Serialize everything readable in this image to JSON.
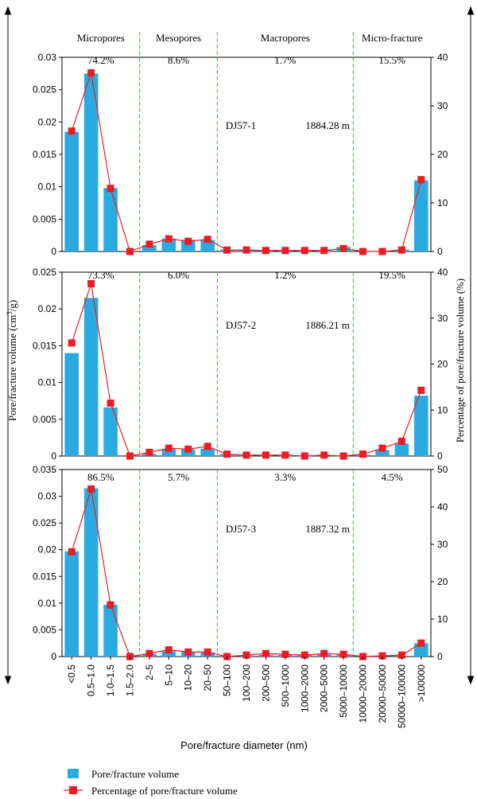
{
  "chart_data": {
    "type": "bar",
    "categories": [
      "<0.5",
      "0.5–1.0",
      "1.0–1.5",
      "1.5–2.0",
      "2–5",
      "5–10",
      "10–20",
      "20–50",
      "50–100",
      "100–200",
      "200–500",
      "500–1000",
      "1000–2000",
      "2000–5000",
      "5000–10000",
      "10000–20000",
      "20000–50000",
      "50000–100000",
      ">100000"
    ],
    "xlabel": "Pore/fracture diameter (nm)",
    "ylabel_left": "Pore/fracture volume (cm³/g)",
    "ylabel_right": "Percentage of pore/fracture volume (%)",
    "legend": [
      {
        "name": "Pore/fracture volume",
        "color": "#29abe2"
      },
      {
        "name": "Percentage of pore/fracture volume",
        "color": "#ed1c24"
      }
    ],
    "bar_color": "#29abe2",
    "line_color": "#ed1c24",
    "divider_color": "#3cb54a",
    "regions": [
      "Micropores",
      "Mesopores",
      "Macropores",
      "Micro-fracture"
    ],
    "panels": [
      {
        "sample": "DJ57-1",
        "depth": "1884.28 m",
        "region_percentages": [
          "74.2%",
          "8.6%",
          "1.7%",
          "15.5%"
        ],
        "ylim_left": [
          0,
          0.03
        ],
        "yticks_left": [
          "0",
          "0.005",
          "0.01",
          "0.015",
          "0.02",
          "0.025",
          "0.03"
        ],
        "ylim_right": [
          0,
          40
        ],
        "yticks_right": [
          "0",
          "10",
          "20",
          "30",
          "40"
        ],
        "series": [
          {
            "name": "Pore/fracture volume",
            "values": [
              0.0185,
              0.0275,
              0.0098,
              0,
              0.001,
              0.002,
              0.0018,
              0.0018,
              0.0003,
              0.0003,
              0.0002,
              0.0002,
              0.0002,
              0.0002,
              0.0007,
              0,
              0,
              0.0003,
              0.011
            ]
          },
          {
            "name": "Percentage of pore/fracture volume",
            "values": [
              24.8,
              36.8,
              13,
              0,
              1.5,
              2.6,
              2.1,
              2.5,
              0.3,
              0.3,
              0.2,
              0.2,
              0.2,
              0.2,
              0.6,
              0,
              0,
              0.3,
              14.8
            ]
          }
        ]
      },
      {
        "sample": "DJ57-2",
        "depth": "1886.21 m",
        "region_percentages": [
          "73.3%",
          "6.0%",
          "1.2%",
          "19.5%"
        ],
        "ylim_left": [
          0,
          0.025
        ],
        "yticks_left": [
          "0",
          "0.005",
          "0.01",
          "0.015",
          "0.02",
          "0.025"
        ],
        "ylim_right": [
          0,
          40
        ],
        "yticks_right": [
          "0",
          "10",
          "20",
          "30",
          "40"
        ],
        "series": [
          {
            "name": "Pore/fracture volume",
            "values": [
              0.014,
              0.0215,
              0.0066,
              0,
              0.0003,
              0.001,
              0.0009,
              0.001,
              0.0003,
              0.0002,
              0.0002,
              0.0002,
              0,
              0,
              0,
              0.0002,
              0.0008,
              0.0017,
              0.0082
            ]
          },
          {
            "name": "Percentage of pore/fracture volume",
            "values": [
              24.6,
              37.5,
              11.5,
              0,
              0.8,
              1.7,
              1.5,
              2.1,
              0.4,
              0.2,
              0.2,
              0.2,
              0,
              0.2,
              0,
              0.4,
              1.7,
              3.2,
              14.3
            ]
          }
        ]
      },
      {
        "sample": "DJ57-3",
        "depth": "1887.32 m",
        "region_percentages": [
          "86.5%",
          "5.7%",
          "3.3%",
          "4.5%"
        ],
        "ylim_left": [
          0,
          0.035
        ],
        "yticks_left": [
          "0",
          "0.005",
          "0.01",
          "0.015",
          "0.02",
          "0.025",
          "0.03",
          "0.035"
        ],
        "ylim_right": [
          0,
          50
        ],
        "yticks_right": [
          "0",
          "10",
          "20",
          "30",
          "40",
          "50"
        ],
        "series": [
          {
            "name": "Pore/fracture volume",
            "values": [
              0.0197,
              0.0315,
              0.0097,
              0,
              0.0005,
              0.001,
              0.0009,
              0.0008,
              0,
              0.0002,
              0.0003,
              0.0003,
              0.0003,
              0.0004,
              0.0004,
              0,
              0,
              0,
              0.0025
            ]
          },
          {
            "name": "Percentage of pore/fracture volume",
            "values": [
              28,
              44.8,
              13.8,
              0,
              0.8,
              1.8,
              1.2,
              1.2,
              0,
              0.4,
              0.8,
              0.6,
              0.4,
              0.8,
              0.6,
              0,
              0.2,
              0.4,
              3.6
            ]
          }
        ]
      }
    ]
  }
}
